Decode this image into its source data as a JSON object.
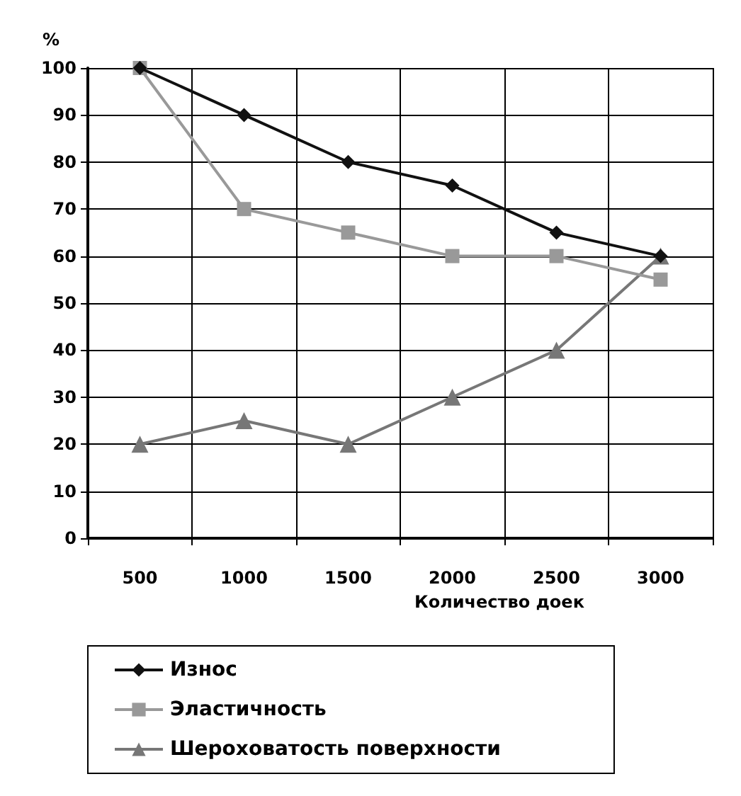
{
  "chart_data": {
    "type": "line",
    "xlabel": "Количество доек",
    "ylabel": "%",
    "categories": [
      "500",
      "1000",
      "1500",
      "2000",
      "2500",
      "3000"
    ],
    "series": [
      {
        "name": "Износ",
        "color": "#111111",
        "values": [
          100,
          90,
          80,
          75,
          65,
          60
        ],
        "marker": "diamond"
      },
      {
        "name": "Эластичность",
        "color": "#999999",
        "values": [
          100,
          70,
          65,
          60,
          60,
          55
        ],
        "marker": "square"
      },
      {
        "name": "Шероховатость поверхности",
        "color": "#777777",
        "values": [
          20,
          25,
          20,
          30,
          40,
          60
        ],
        "marker": "triangle"
      }
    ],
    "ylim": [
      0,
      100
    ],
    "yticks": [
      0,
      10,
      20,
      30,
      40,
      50,
      60,
      70,
      80,
      90,
      100
    ],
    "grid": true,
    "legend": "bottom",
    "line_style": "solid"
  }
}
